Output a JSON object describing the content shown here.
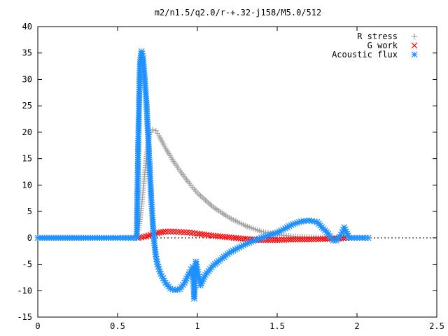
{
  "chart_data": {
    "type": "scatter",
    "title": "m2/n1.5/q2.0/r-+.32-j158/M5.0/512",
    "xlabel": "",
    "ylabel": "",
    "xlim": [
      0,
      2.5
    ],
    "ylim": [
      -15,
      40
    ],
    "x_ticks": [
      "0",
      "0.5",
      "1",
      "1.5",
      "2",
      "2.5"
    ],
    "y_ticks": [
      "-15",
      "-10",
      "-5",
      "0",
      "5",
      "10",
      "15",
      "20",
      "25",
      "30",
      "35",
      "40"
    ],
    "legend_position": "top-right",
    "grid": false,
    "series": [
      {
        "name": "R stress",
        "marker": "+",
        "color": "#a0a0a0",
        "x": [
          0.63,
          0.64,
          0.65,
          0.66,
          0.67,
          0.68,
          0.69,
          0.7,
          0.72,
          0.74,
          0.76,
          0.8,
          0.85,
          0.9,
          0.95,
          1.0,
          1.1,
          1.2,
          1.3,
          1.4,
          1.5,
          1.6,
          1.7,
          1.8,
          1.9,
          1.93
        ],
        "y": [
          1.5,
          3.5,
          6.0,
          9.0,
          12.0,
          15.0,
          17.5,
          19.5,
          20.5,
          20.3,
          19.3,
          17.0,
          14.5,
          12.3,
          10.3,
          8.5,
          5.8,
          3.8,
          2.3,
          1.2,
          0.6,
          0.3,
          0.15,
          0.05,
          0.0,
          0.0
        ]
      },
      {
        "name": "G work",
        "marker": "x",
        "color": "#ff0000",
        "x": [
          0.63,
          0.68,
          0.72,
          0.76,
          0.8,
          0.85,
          0.9,
          0.95,
          1.0,
          1.1,
          1.2,
          1.3,
          1.4,
          1.5,
          1.6,
          1.7,
          1.8,
          1.9,
          1.93
        ],
        "y": [
          0.0,
          0.3,
          0.7,
          1.0,
          1.2,
          1.2,
          1.1,
          1.0,
          0.8,
          0.4,
          0.1,
          -0.2,
          -0.4,
          -0.4,
          -0.3,
          -0.3,
          -0.2,
          -0.1,
          0.0
        ]
      },
      {
        "name": "Acoustic flux",
        "marker": "*",
        "color": "#1e90ff",
        "x": [
          0.0,
          0.1,
          0.2,
          0.3,
          0.4,
          0.5,
          0.55,
          0.6,
          0.62,
          0.63,
          0.64,
          0.65,
          0.66,
          0.67,
          0.68,
          0.69,
          0.7,
          0.71,
          0.72,
          0.73,
          0.74,
          0.75,
          0.77,
          0.8,
          0.83,
          0.86,
          0.89,
          0.92,
          0.95,
          0.97,
          0.98,
          0.99,
          1.0,
          1.02,
          1.05,
          1.1,
          1.2,
          1.3,
          1.4,
          1.5,
          1.55,
          1.6,
          1.65,
          1.7,
          1.75,
          1.78,
          1.82,
          1.85,
          1.87,
          1.9,
          1.92,
          1.95,
          2.0,
          2.05,
          2.07
        ],
        "y": [
          0.0,
          0.0,
          0.0,
          0.0,
          0.0,
          0.0,
          0.0,
          0.0,
          0.0,
          18.8,
          33.3,
          35.3,
          34.0,
          30.0,
          26.0,
          20.0,
          14.0,
          8.0,
          3.0,
          -1.0,
          -3.5,
          -5.0,
          -6.8,
          -8.5,
          -9.6,
          -9.9,
          -9.7,
          -8.5,
          -6.5,
          -5.5,
          -11.5,
          -4.5,
          -6.0,
          -9.0,
          -7.0,
          -5.2,
          -2.8,
          -1.2,
          0.0,
          1.0,
          1.8,
          2.6,
          3.1,
          3.3,
          3.0,
          2.0,
          0.8,
          -0.5,
          -0.5,
          0.6,
          2.0,
          0.0,
          0.0,
          0.0,
          0.0
        ]
      }
    ]
  }
}
